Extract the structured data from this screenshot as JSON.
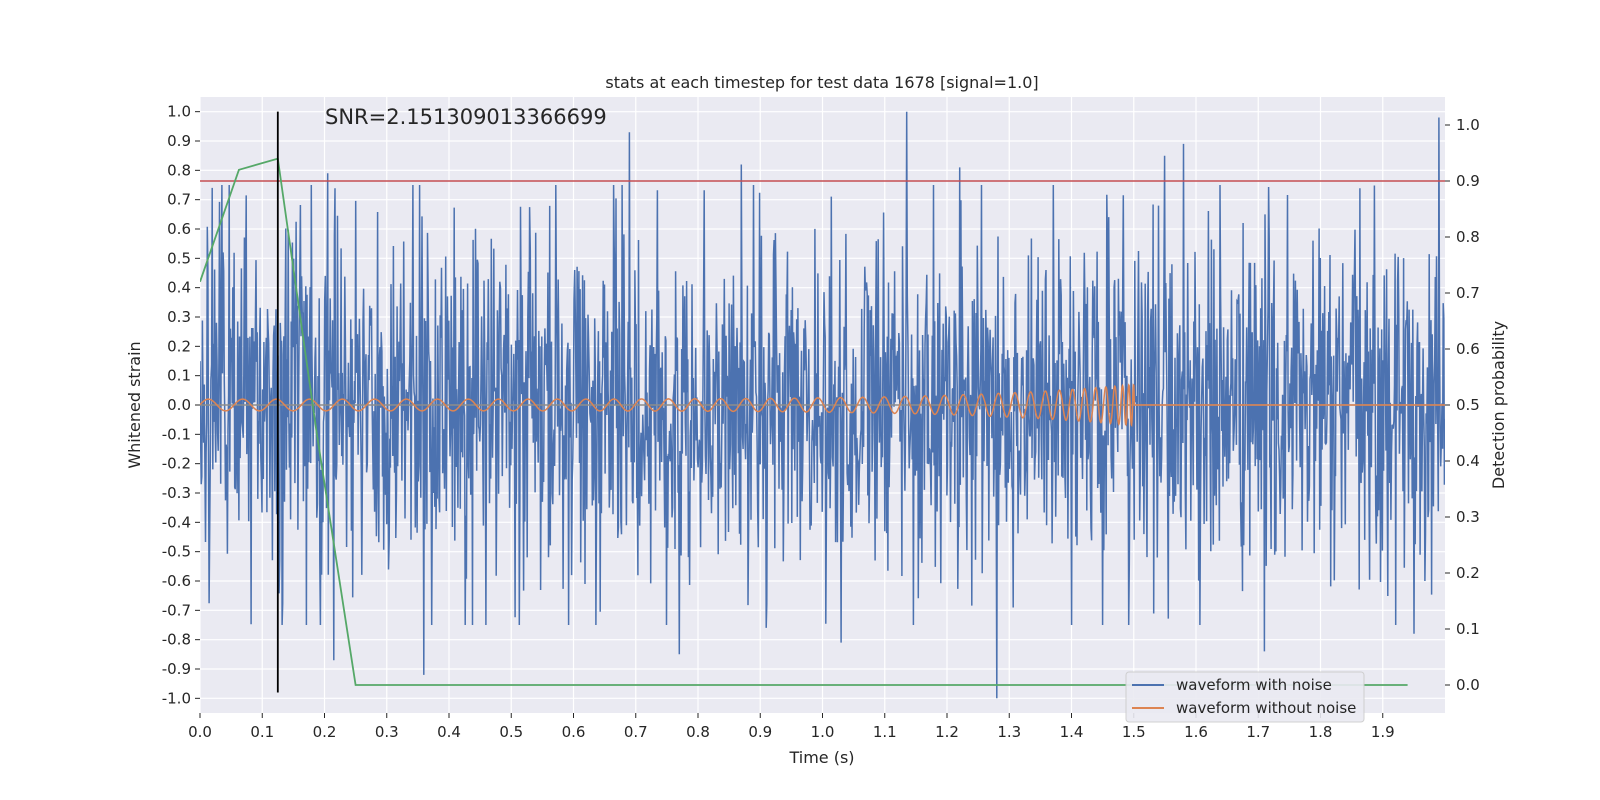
{
  "chart_data": {
    "type": "line",
    "title": "stats at each timestep for test data 1678 [signal=1.0]",
    "xlabel": "Time (s)",
    "ylabel": "Whitened strain",
    "y2label": "Detection probability",
    "annotation": "SNR=2.151309013366699",
    "xlim": [
      0.0,
      2.0
    ],
    "ylim": [
      -1.05,
      1.05
    ],
    "y2lim": [
      -0.05,
      1.05
    ],
    "x_ticks": [
      "0.0",
      "0.1",
      "0.2",
      "0.3",
      "0.4",
      "0.5",
      "0.6",
      "0.7",
      "0.8",
      "0.9",
      "1.0",
      "1.1",
      "1.2",
      "1.3",
      "1.4",
      "1.5",
      "1.6",
      "1.7",
      "1.8",
      "1.9"
    ],
    "y_ticks": [
      "1.0",
      "0.9",
      "0.8",
      "0.7",
      "0.6",
      "0.5",
      "0.4",
      "0.3",
      "0.2",
      "0.1",
      "0.0",
      "-0.1",
      "-0.2",
      "-0.3",
      "-0.4",
      "-0.5",
      "-0.6",
      "-0.7",
      "-0.8",
      "-0.9",
      "-1.0"
    ],
    "y2_ticks": [
      "1.0",
      "0.9",
      "0.8",
      "0.7",
      "0.6",
      "0.5",
      "0.4",
      "0.3",
      "0.2",
      "0.1",
      "0.0"
    ],
    "grid": true,
    "legend_position": "lower-right",
    "series": [
      {
        "name": "waveform with noise",
        "axis": "left",
        "color": "#4c72b0",
        "kind": "noise",
        "x_range": [
          0.0,
          2.0
        ],
        "peaks": [
          {
            "x": 0.69,
            "y": 0.93
          },
          {
            "x": 0.87,
            "y": 0.82
          },
          {
            "x": 1.135,
            "y": 1.0
          },
          {
            "x": 1.22,
            "y": 0.81
          },
          {
            "x": 1.58,
            "y": 0.89
          },
          {
            "x": 1.55,
            "y": 0.85
          },
          {
            "x": 0.205,
            "y": 0.79
          },
          {
            "x": 1.99,
            "y": 0.98
          },
          {
            "x": 0.02,
            "y": 0.74
          }
        ],
        "troughs": [
          {
            "x": 1.28,
            "y": -1.0
          },
          {
            "x": 0.215,
            "y": -0.87
          },
          {
            "x": 0.36,
            "y": -0.92
          },
          {
            "x": 0.77,
            "y": -0.85
          },
          {
            "x": 1.71,
            "y": -0.84
          },
          {
            "x": 0.91,
            "y": -0.76
          },
          {
            "x": 1.03,
            "y": -0.81
          },
          {
            "x": 1.95,
            "y": -0.78
          }
        ]
      },
      {
        "name": "waveform without noise",
        "axis": "left",
        "color": "#dd8452",
        "kind": "chirp",
        "x_range": [
          0.0,
          1.5
        ],
        "amplitude_start": 0.02,
        "amplitude_end": 0.07
      },
      {
        "name": "",
        "axis": "right",
        "color": "#55a868",
        "kind": "polyline",
        "x": [
          0.0,
          0.0625,
          0.125,
          0.1875,
          0.25,
          0.3,
          0.5,
          1.0,
          1.5,
          1.94
        ],
        "y": [
          0.72,
          0.92,
          0.94,
          0.45,
          0.0,
          0.0,
          0.0,
          0.0,
          0.0,
          0.0
        ]
      }
    ],
    "threshold_line": {
      "axis": "right",
      "y": 0.9,
      "color": "#c44e52"
    },
    "zero_line": {
      "axis": "left",
      "y": 0.0,
      "color": "#8c8c8c"
    },
    "marker_line": {
      "x": 0.125,
      "y_from": -0.98,
      "y_to": 1.0,
      "color": "#000000"
    }
  }
}
